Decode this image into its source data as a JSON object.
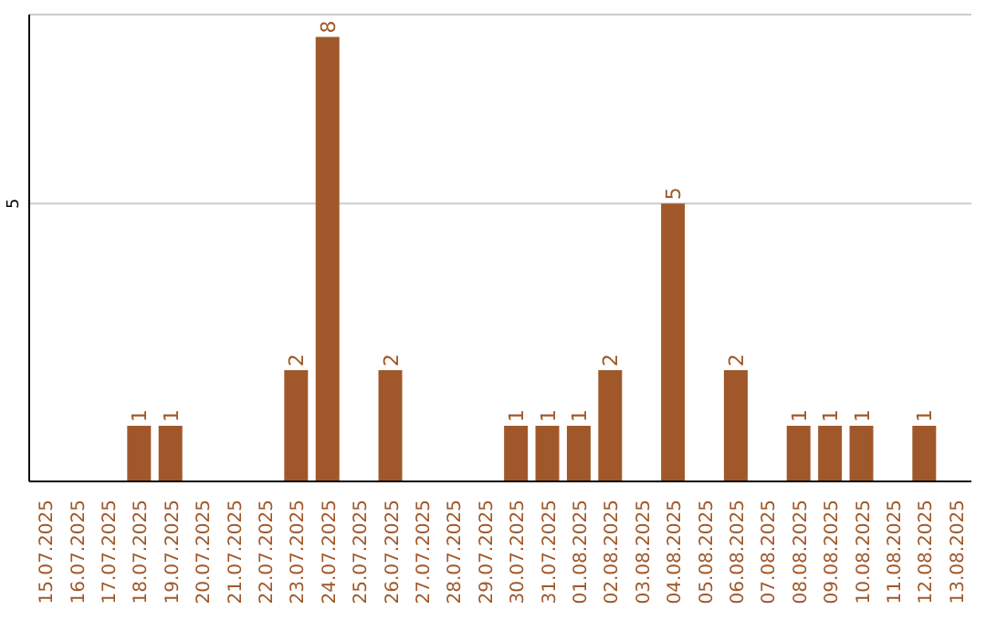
{
  "chart_data": {
    "type": "bar",
    "categories": [
      "15.07.2025",
      "16.07.2025",
      "17.07.2025",
      "18.07.2025",
      "19.07.2025",
      "20.07.2025",
      "21.07.2025",
      "22.07.2025",
      "23.07.2025",
      "24.07.2025",
      "25.07.2025",
      "26.07.2025",
      "27.07.2025",
      "28.07.2025",
      "29.07.2025",
      "30.07.2025",
      "31.07.2025",
      "01.08.2025",
      "02.08.2025",
      "03.08.2025",
      "04.08.2025",
      "05.08.2025",
      "06.08.2025",
      "07.08.2025",
      "08.08.2025",
      "09.08.2025",
      "10.08.2025",
      "11.08.2025",
      "12.08.2025",
      "13.08.2025"
    ],
    "values": [
      0,
      0,
      0,
      1,
      1,
      0,
      0,
      0,
      2,
      8,
      0,
      2,
      0,
      0,
      0,
      1,
      1,
      1,
      2,
      0,
      5,
      0,
      2,
      0,
      1,
      1,
      1,
      0,
      1,
      0
    ],
    "value_labels": [
      null,
      null,
      null,
      "1",
      "1",
      null,
      null,
      null,
      "2",
      "8",
      null,
      "2",
      null,
      null,
      null,
      "1",
      "1",
      "1",
      "2",
      null,
      "5",
      null,
      "2",
      null,
      "1",
      "1",
      "1",
      null,
      "1",
      null
    ],
    "color": "#a0582a",
    "ylim": [
      0,
      8.4
    ],
    "yticks": [
      5
    ],
    "grid": "y"
  }
}
